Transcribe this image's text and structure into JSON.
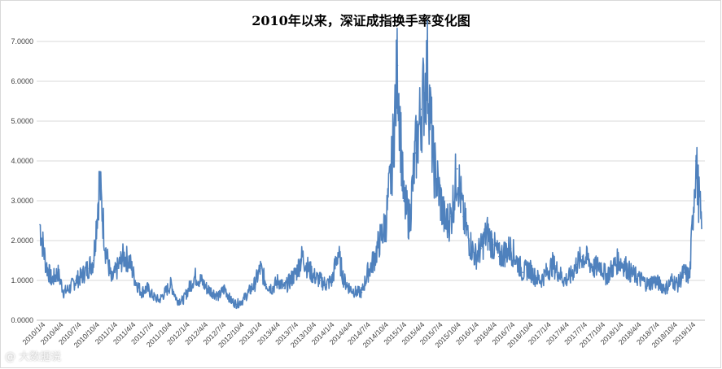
{
  "chart_data": {
    "type": "line",
    "title": "2010年以来，深证成指换手率变化图",
    "xlabel": "",
    "ylabel": "",
    "ylim": [
      0,
      7
    ],
    "yticks": [
      "0.0000",
      "1.0000",
      "2.0000",
      "3.0000",
      "4.0000",
      "5.0000",
      "6.0000",
      "7.0000"
    ],
    "xticks": [
      "2010/1/4",
      "2010/4/4",
      "2010/7/4",
      "2010/10/4",
      "2011/1/4",
      "2011/4/4",
      "2011/7/4",
      "2011/10/4",
      "2012/1/4",
      "2012/4/4",
      "2012/7/4",
      "2012/10/4",
      "2013/1/4",
      "2013/4/4",
      "2013/7/4",
      "2013/10/4",
      "2014/1/4",
      "2014/4/4",
      "2014/7/4",
      "2014/10/4",
      "2015/1/4",
      "2015/4/4",
      "2015/7/4",
      "2015/10/4",
      "2016/1/4",
      "2016/4/4",
      "2016/7/4",
      "2016/10/4",
      "2017/1/4",
      "2017/4/4",
      "2017/7/4",
      "2017/10/4",
      "2018/1/4",
      "2018/4/4",
      "2018/7/4",
      "2018/10/4",
      "2019/1/4"
    ],
    "grid": true,
    "legend": "none",
    "line_color": "#4f81bd",
    "series": [
      {
        "x": [
          "2010/1/4",
          "2010/2/4",
          "2010/3/4",
          "2010/4/4",
          "2010/5/4",
          "2010/6/4",
          "2010/7/4",
          "2010/8/4",
          "2010/9/4",
          "2010/10/4",
          "2010/11/4",
          "2010/12/4",
          "2011/1/4",
          "2011/2/4",
          "2011/3/4",
          "2011/4/4",
          "2011/5/4",
          "2011/6/4",
          "2011/7/4",
          "2011/8/4",
          "2011/9/4",
          "2011/10/4",
          "2011/11/4",
          "2011/12/4",
          "2012/1/4",
          "2012/2/4",
          "2012/3/4",
          "2012/4/4",
          "2012/5/4",
          "2012/6/4",
          "2012/7/4",
          "2012/8/4",
          "2012/9/4",
          "2012/10/4",
          "2012/11/4",
          "2012/12/4",
          "2013/1/4",
          "2013/2/4",
          "2013/3/4",
          "2013/4/4",
          "2013/5/4",
          "2013/6/4",
          "2013/7/4",
          "2013/8/4",
          "2013/9/4",
          "2013/10/4",
          "2013/11/4",
          "2013/12/4",
          "2014/1/4",
          "2014/2/4",
          "2014/3/4",
          "2014/4/4",
          "2014/5/4",
          "2014/6/4",
          "2014/7/4",
          "2014/8/4",
          "2014/9/4",
          "2014/10/4",
          "2014/11/4",
          "2014/12/4",
          "2015/1/4",
          "2015/2/4",
          "2015/3/4",
          "2015/4/4",
          "2015/5/4",
          "2015/6/4",
          "2015/7/4",
          "2015/8/4",
          "2015/9/4",
          "2015/10/4",
          "2015/11/4",
          "2015/12/4",
          "2016/1/4",
          "2016/2/4",
          "2016/3/4",
          "2016/4/4",
          "2016/5/4",
          "2016/6/4",
          "2016/7/4",
          "2016/8/4",
          "2016/9/4",
          "2016/10/4",
          "2016/11/4",
          "2016/12/4",
          "2017/1/4",
          "2017/2/4",
          "2017/3/4",
          "2017/4/4",
          "2017/5/4",
          "2017/6/4",
          "2017/7/4",
          "2017/8/4",
          "2017/9/4",
          "2017/10/4",
          "2017/11/4",
          "2017/12/4",
          "2018/1/4",
          "2018/2/4",
          "2018/3/4",
          "2018/4/4",
          "2018/5/4",
          "2018/6/4",
          "2018/7/4",
          "2018/8/4",
          "2018/9/4",
          "2018/10/4",
          "2018/11/4",
          "2018/12/4",
          "2019/1/4",
          "2019/2/4",
          "2019/3/4",
          "2019/4/4"
        ],
        "values": [
          2.4,
          1.4,
          1.0,
          1.2,
          0.7,
          0.8,
          1.0,
          1.1,
          1.3,
          1.5,
          3.5,
          1.8,
          1.0,
          1.3,
          1.6,
          1.5,
          1.0,
          0.7,
          0.8,
          0.6,
          0.5,
          0.7,
          0.9,
          0.5,
          0.5,
          0.8,
          1.1,
          1.0,
          0.8,
          0.7,
          0.6,
          0.8,
          0.5,
          0.4,
          0.5,
          0.7,
          0.9,
          1.3,
          0.9,
          0.8,
          1.0,
          0.8,
          1.0,
          1.2,
          1.6,
          1.3,
          1.1,
          1.0,
          0.9,
          1.0,
          1.7,
          1.0,
          0.8,
          0.7,
          0.7,
          1.2,
          1.5,
          2.0,
          2.4,
          3.8,
          6.4,
          3.0,
          2.5,
          4.2,
          5.3,
          6.3,
          4.0,
          3.2,
          2.4,
          2.6,
          3.8,
          2.6,
          2.0,
          1.6,
          1.8,
          2.2,
          1.9,
          1.6,
          1.7,
          1.8,
          1.5,
          1.2,
          1.3,
          1.1,
          1.0,
          1.2,
          1.4,
          1.2,
          1.0,
          1.1,
          1.4,
          1.6,
          1.5,
          1.3,
          1.4,
          1.1,
          1.3,
          1.5,
          1.4,
          1.2,
          1.1,
          1.0,
          0.9,
          1.0,
          0.9,
          0.8,
          1.0,
          0.9,
          1.2,
          1.1,
          4.0,
          2.3
        ]
      }
    ]
  },
  "watermark_text": "@ 大数据说"
}
